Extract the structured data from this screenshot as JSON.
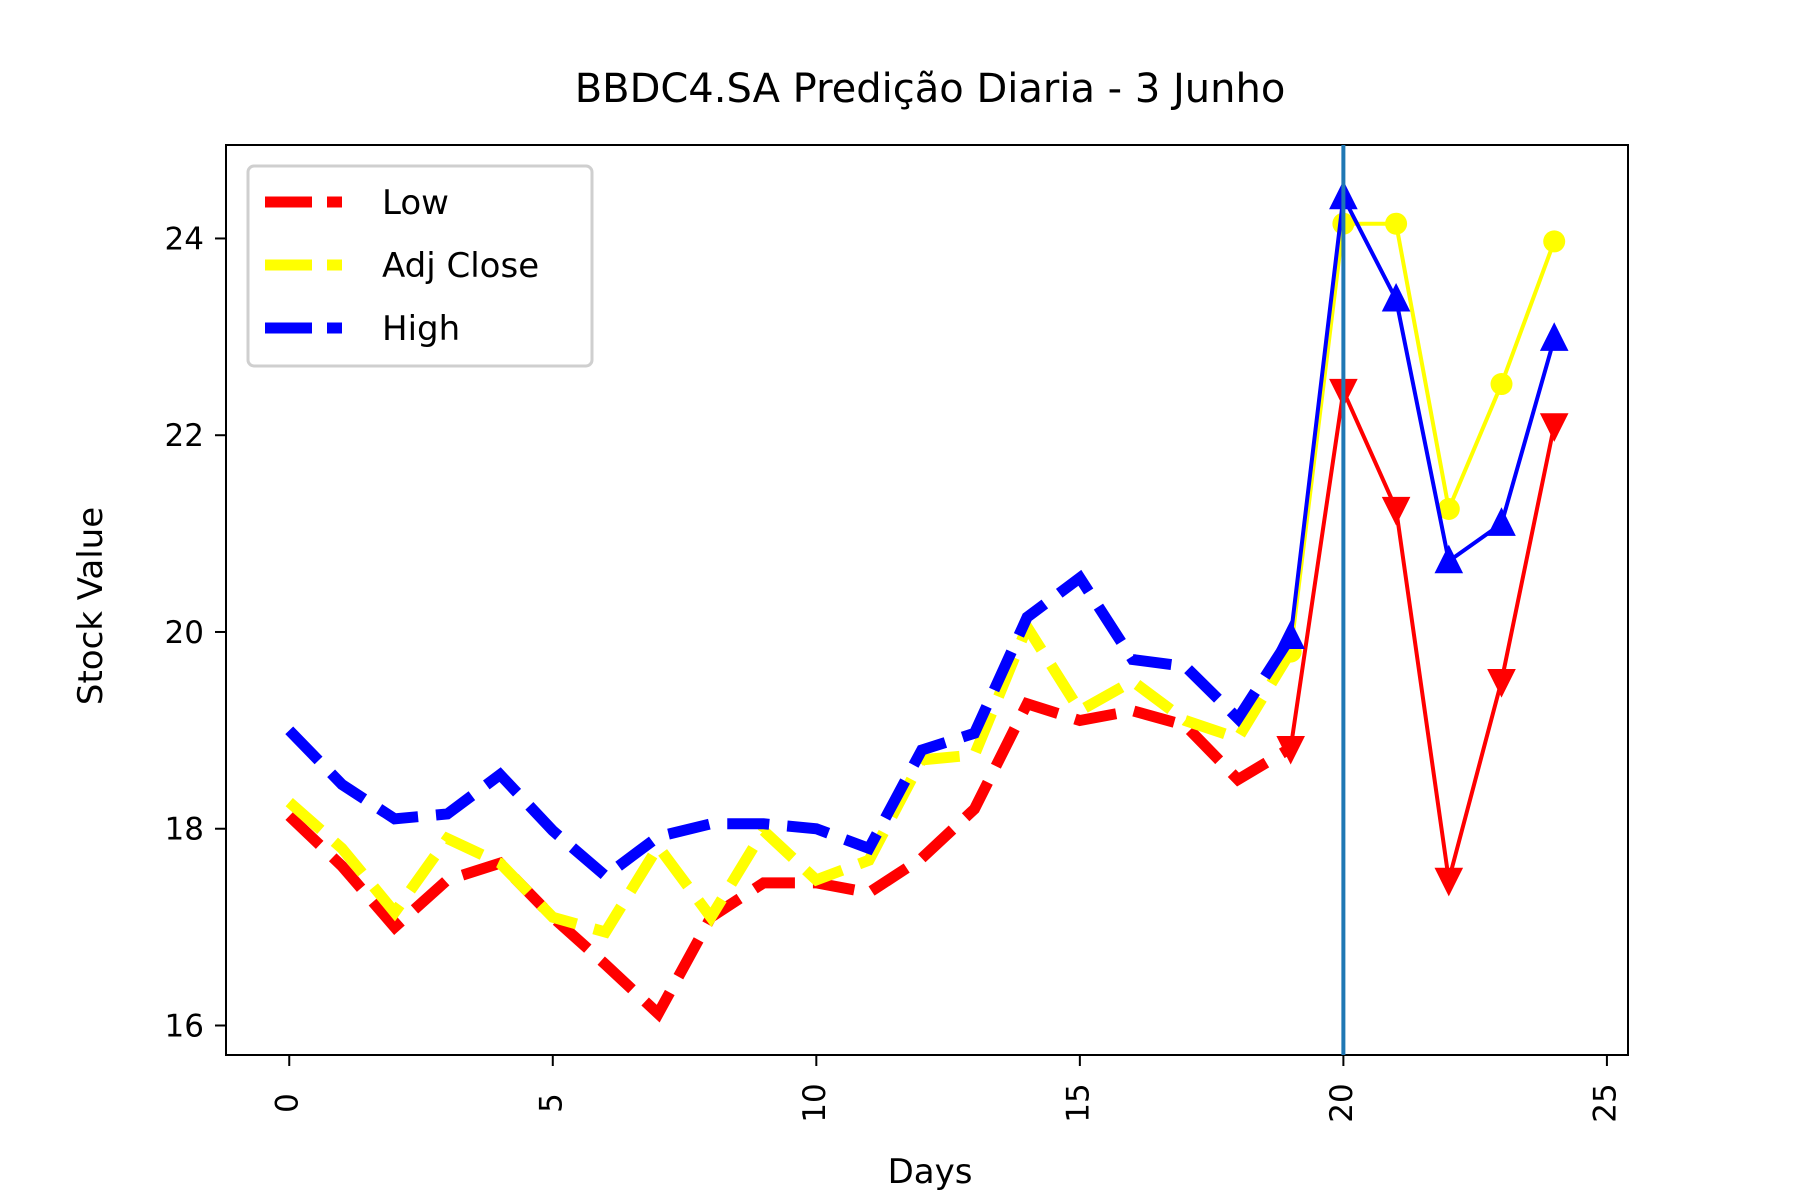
{
  "chart_data": {
    "type": "line",
    "title": "BBDC4.SA Predição Diaria - 3 Junho",
    "xlabel": "Days",
    "ylabel": "Stock Value",
    "xlim": [
      -1.2,
      25.4
    ],
    "ylim": [
      15.7,
      24.95
    ],
    "xticks": [
      0,
      5,
      10,
      15,
      20,
      25
    ],
    "yticks": [
      16,
      18,
      20,
      22,
      24
    ],
    "grid": false,
    "legend_position": "top-left",
    "vertical_marker_x": 20,
    "colors": {
      "low": "#ff0000",
      "adj_close": "#ffff00",
      "high": "#0000ff",
      "marker_line": "#1f77b4"
    },
    "series": [
      {
        "name": "Low",
        "color": "#ff0000",
        "historical": {
          "x": [
            0,
            1,
            2,
            3,
            4,
            5,
            6,
            7,
            8,
            9,
            10,
            11,
            12,
            13,
            14,
            15,
            16,
            17,
            18,
            19
          ],
          "y": [
            18.13,
            17.62,
            17.0,
            17.48,
            17.65,
            17.1,
            16.62,
            16.12,
            17.1,
            17.45,
            17.45,
            17.35,
            17.7,
            18.2,
            19.27,
            19.1,
            19.2,
            19.05,
            18.5,
            18.82
          ]
        },
        "predicted": {
          "x": [
            19,
            20,
            21,
            22,
            23,
            24
          ],
          "y": [
            18.82,
            22.45,
            21.25,
            17.48,
            19.5,
            22.1
          ]
        }
      },
      {
        "name": "Adj Close",
        "color": "#ffff00",
        "historical": {
          "x": [
            0,
            1,
            2,
            3,
            4,
            5,
            6,
            7,
            8,
            9,
            10,
            11,
            12,
            13,
            14,
            15,
            16,
            17,
            18,
            19
          ],
          "y": [
            18.27,
            17.8,
            17.15,
            17.9,
            17.65,
            17.1,
            16.95,
            17.82,
            17.1,
            17.98,
            17.48,
            17.68,
            18.7,
            18.75,
            20.05,
            19.2,
            19.5,
            19.1,
            18.92,
            19.8
          ]
        },
        "predicted": {
          "x": [
            19,
            20,
            21,
            22,
            23,
            24
          ],
          "y": [
            19.8,
            24.15,
            24.15,
            21.25,
            22.52,
            23.97
          ]
        }
      },
      {
        "name": "High",
        "color": "#0000ff",
        "historical": {
          "x": [
            0,
            1,
            2,
            3,
            4,
            5,
            6,
            7,
            8,
            9,
            10,
            11,
            12,
            13,
            14,
            15,
            16,
            17,
            18,
            19
          ],
          "y": [
            19.0,
            18.45,
            18.1,
            18.15,
            18.55,
            17.98,
            17.52,
            17.92,
            18.05,
            18.05,
            18.0,
            17.8,
            18.8,
            18.97,
            20.15,
            20.55,
            19.72,
            19.65,
            19.12,
            19.95
          ]
        },
        "predicted": {
          "x": [
            19,
            20,
            21,
            22,
            23,
            24
          ],
          "y": [
            19.95,
            24.42,
            23.38,
            20.72,
            21.1,
            22.98
          ]
        }
      }
    ]
  }
}
